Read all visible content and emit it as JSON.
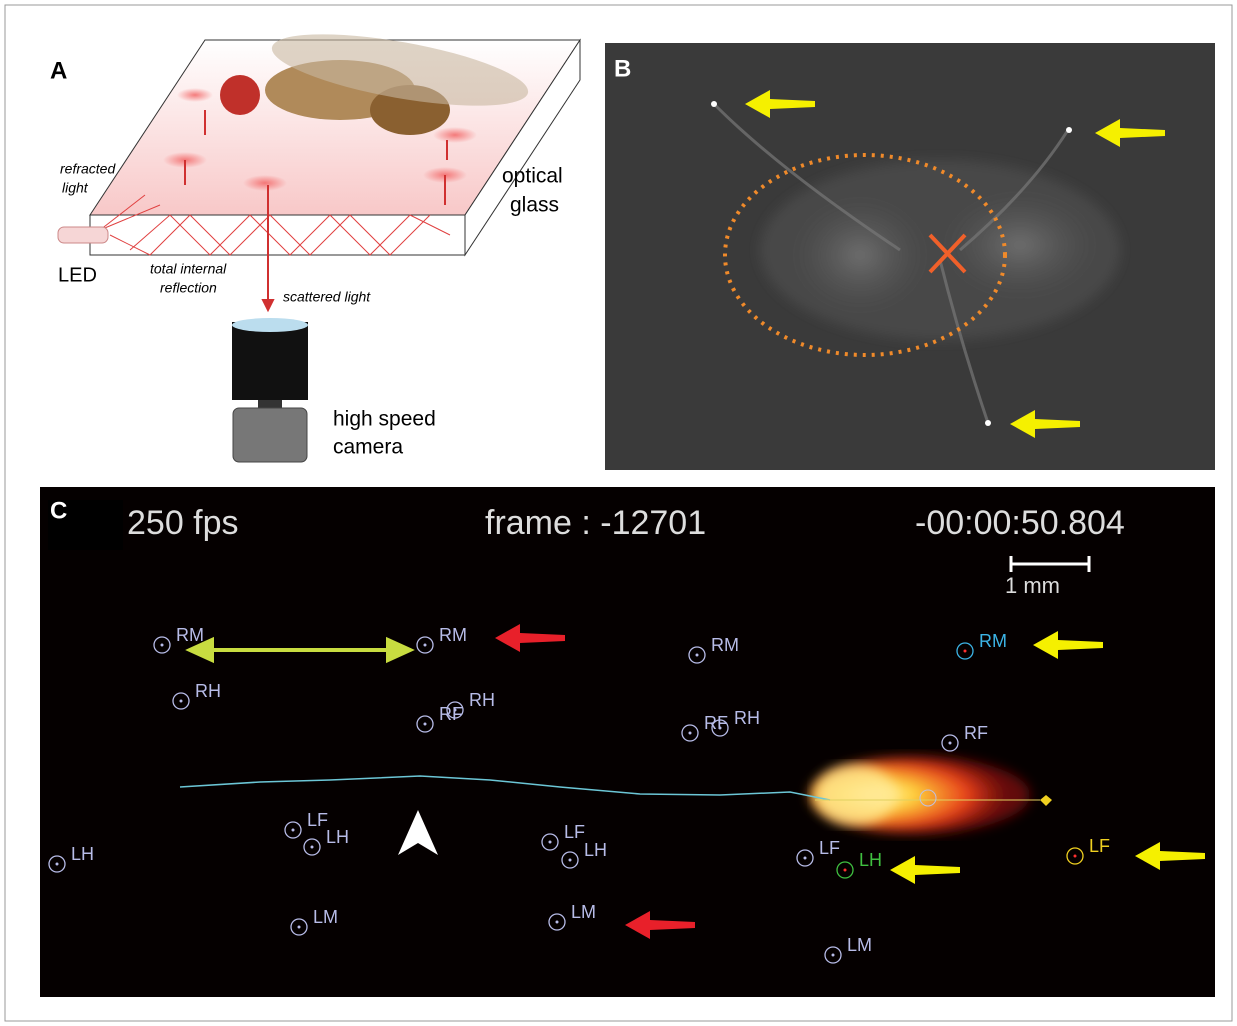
{
  "panel_a": {
    "label": "A",
    "refracted_light": [
      "refracted",
      "light"
    ],
    "led": "LED",
    "total_internal_reflection": [
      "total internal",
      "reflection"
    ],
    "scattered_light": "scattered light",
    "optical_glass": [
      "optical",
      "glass"
    ],
    "camera": [
      "high speed",
      "camera"
    ]
  },
  "panel_b": {
    "label": "B"
  },
  "panel_c": {
    "label": "C",
    "fps": "250 fps",
    "frame": "frame : -12701",
    "time": "-00:00:50.804",
    "scale": "1 mm",
    "leg_labels": [
      "RM",
      "RM",
      "RM",
      "RM",
      "RH",
      "RF",
      "RH",
      "RF",
      "RH",
      "RF",
      "LF",
      "LH",
      "LH",
      "LF",
      "LH",
      "LF",
      "LH",
      "LF",
      "LM",
      "LM",
      "LM"
    ]
  }
}
